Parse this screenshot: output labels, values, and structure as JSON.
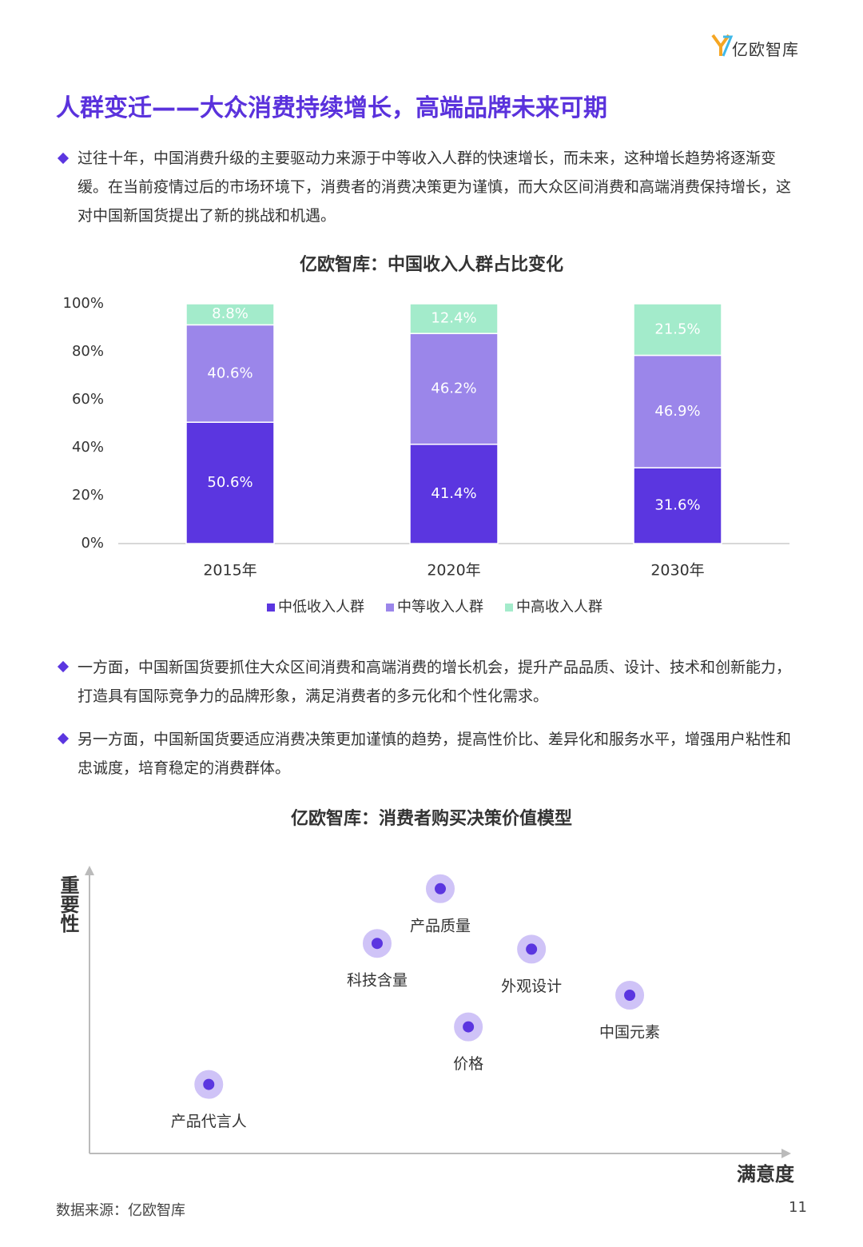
{
  "header": {
    "brand": "亿欧智库"
  },
  "title": "人群变迁——大众消费持续增长，高端品牌未来可期",
  "paragraphs": [
    "过往十年，中国消费升级的主要驱动力来源于中等收入人群的快速增长，而未来，这种增长趋势将逐渐变缓。在当前疫情过后的市场环境下，消费者的消费决策更为谨慎，而大众区间消费和高端消费保持增长，这对中国新国货提出了新的挑战和机遇。",
    "一方面，中国新国货要抓住大众区间消费和高端消费的增长机会，提升产品品质、设计、技术和创新能力，打造具有国际竞争力的品牌形象，满足消费者的多元化和个性化需求。",
    "另一方面，中国新国货要适应消费决策更加谨慎的趋势，提高性价比、差异化和服务水平，增强用户粘性和忠诚度，培育稳定的消费群体。"
  ],
  "chart_data": [
    {
      "type": "bar",
      "stacked": true,
      "title": "亿欧智库：中国收入人群占比变化",
      "categories": [
        "2015年",
        "2020年",
        "2030年"
      ],
      "series": [
        {
          "name": "中低收入人群",
          "color": "#5b36e0",
          "values": [
            50.6,
            41.4,
            31.6
          ],
          "value_labels": [
            "50.6%",
            "41.4%",
            "31.6%"
          ]
        },
        {
          "name": "中等收入人群",
          "color": "#9b86ea",
          "values": [
            40.6,
            46.2,
            46.9
          ],
          "value_labels": [
            "40.6%",
            "46.2%",
            "46.9%"
          ]
        },
        {
          "name": "中高收入人群",
          "color": "#a3ebcb",
          "values": [
            8.8,
            12.4,
            21.5
          ],
          "value_labels": [
            "8.8%",
            "12.4%",
            "21.5%"
          ]
        }
      ],
      "ylim": [
        0,
        100
      ],
      "yticks": [
        {
          "value": 0,
          "label": "0%"
        },
        {
          "value": 20,
          "label": "20%"
        },
        {
          "value": 40,
          "label": "40%"
        },
        {
          "value": 60,
          "label": "60%"
        },
        {
          "value": 80,
          "label": "80%"
        },
        {
          "value": 100,
          "label": "100%"
        }
      ],
      "grid": false,
      "legend": "bottom"
    },
    {
      "type": "scatter",
      "title": "亿欧智库：消费者购买决策价值模型",
      "x_label": "满意度",
      "y_label": "重要性",
      "labels": [
        "产品质量",
        "科技含量",
        "外观设计",
        "中国元素",
        "价格",
        "产品代言人"
      ],
      "x": [
        5.0,
        4.1,
        6.3,
        7.7,
        5.4,
        1.7
      ],
      "values": [
        9.2,
        7.3,
        7.1,
        5.5,
        4.4,
        2.4
      ],
      "xlim": [
        0,
        10
      ],
      "ylim": [
        0,
        10
      ],
      "color": "#5b36e0",
      "halo_color": "#cfc3f7"
    }
  ],
  "source": "数据来源：亿欧智库",
  "page_number": "11"
}
